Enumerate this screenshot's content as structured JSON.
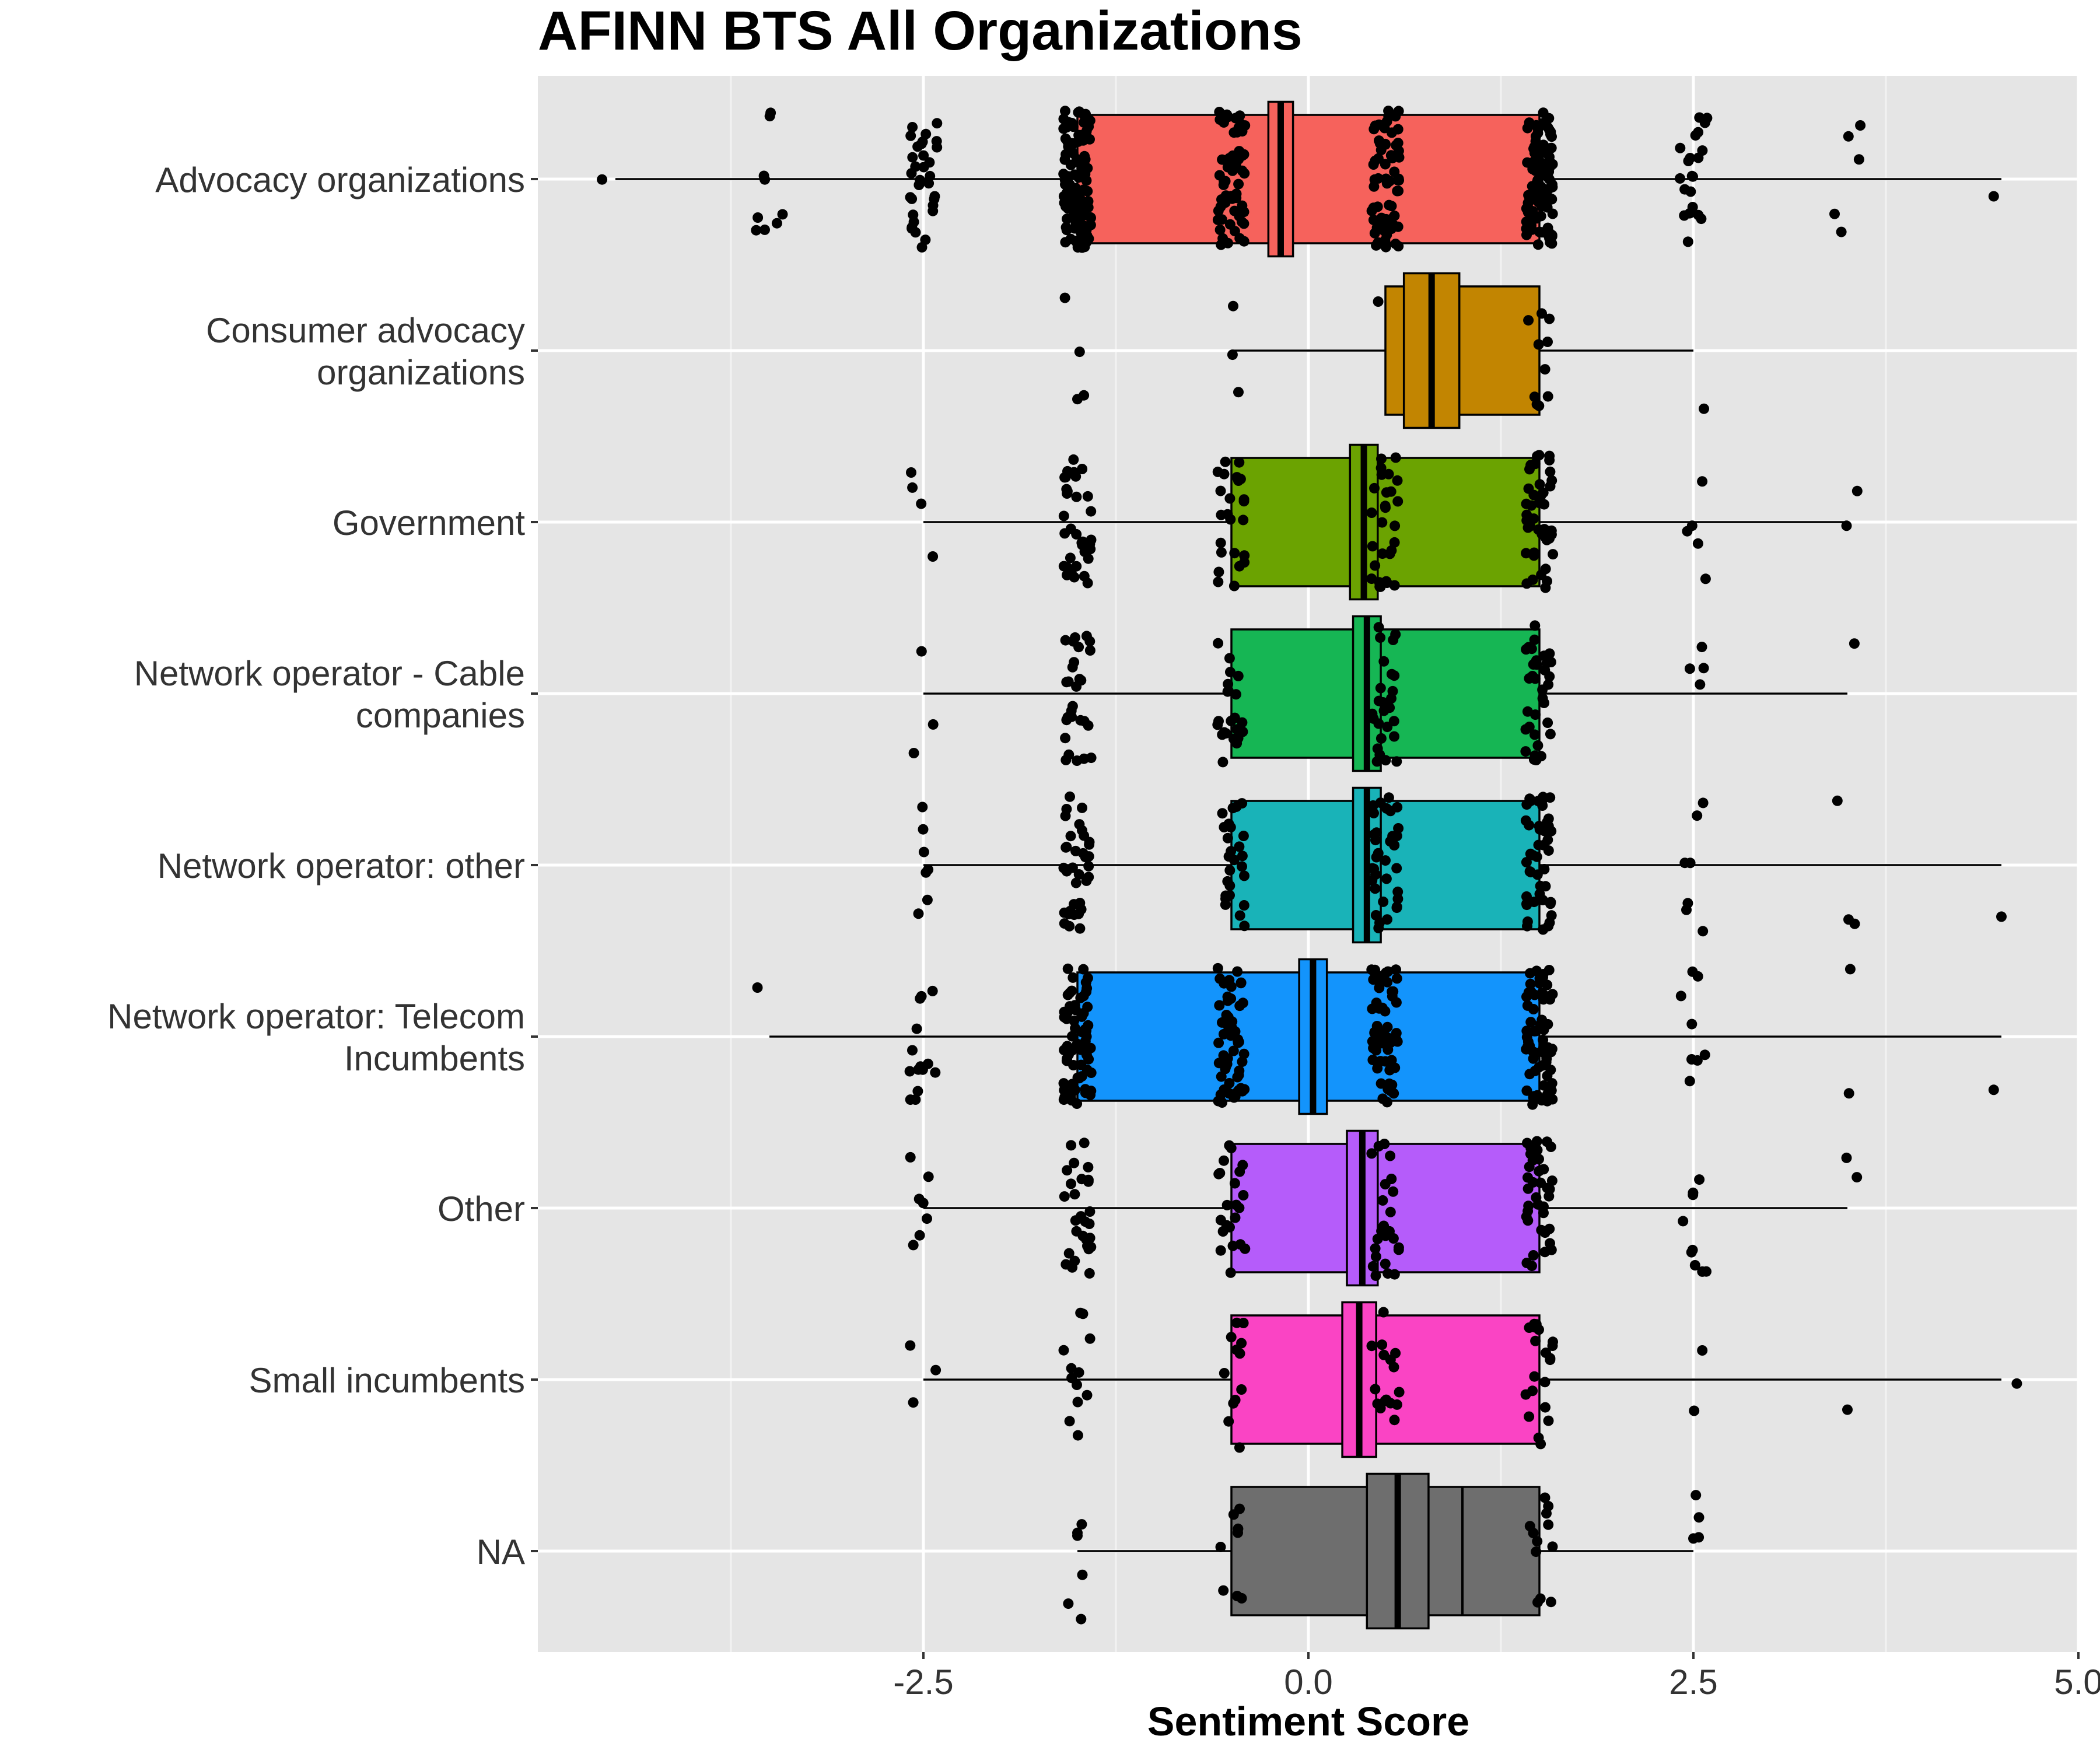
{
  "chart_data": {
    "type": "boxplot",
    "title": "AFINN BTS All Organizations",
    "xlabel": "Sentiment Score",
    "ylabel": "",
    "xlim": [
      -5,
      5
    ],
    "x_ticks": [
      {
        "value": -2.5,
        "label": "-2.5"
      },
      {
        "value": 0,
        "label": "0.0"
      },
      {
        "value": 2.5,
        "label": "2.5"
      },
      {
        "value": 5,
        "label": "5.0"
      }
    ],
    "grid": true,
    "notched": true,
    "jitter_points": true,
    "legend": "none",
    "categories": [
      {
        "lines": [
          "NA"
        ],
        "color": "#6e6e6e",
        "q1": -0.5,
        "median": 0.58,
        "q3": 1.5,
        "notch": [
          0.38,
          0.78
        ],
        "whisker": [
          -1.5,
          2.5
        ],
        "extra_line": 1.0,
        "groups": [
          {
            "v": -1.5,
            "n": 4
          },
          {
            "v": -0.5,
            "n": 8
          },
          {
            "v": 1.5,
            "n": 12
          },
          {
            "v": 2.5,
            "n": 3
          }
        ],
        "outliers": [
          -1.5,
          -1.5,
          2.5
        ]
      },
      {
        "lines": [
          "Small incumbents"
        ],
        "color": "#fa44c4",
        "q1": -0.5,
        "median": 0.33,
        "q3": 1.5,
        "notch": [
          0.22,
          0.44
        ],
        "whisker": [
          -2.5,
          4.5
        ],
        "groups": [
          {
            "v": -2.5,
            "n": 3
          },
          {
            "v": -1.5,
            "n": 12
          },
          {
            "v": -0.5,
            "n": 12
          },
          {
            "v": 0.5,
            "n": 16
          },
          {
            "v": 1.5,
            "n": 20
          },
          {
            "v": 2.5,
            "n": 2
          }
        ],
        "outliers": [
          4.6,
          3.5
        ]
      },
      {
        "lines": [
          "Other"
        ],
        "color": "#b55cfa",
        "q1": -0.5,
        "median": 0.35,
        "q3": 1.5,
        "notch": [
          0.25,
          0.45
        ],
        "whisker": [
          -2.5,
          3.5
        ],
        "groups": [
          {
            "v": -2.5,
            "n": 7
          },
          {
            "v": -1.5,
            "n": 28
          },
          {
            "v": -0.5,
            "n": 22
          },
          {
            "v": 0.5,
            "n": 24
          },
          {
            "v": 1.5,
            "n": 38
          },
          {
            "v": 2.5,
            "n": 9
          },
          {
            "v": 3.5,
            "n": 2
          }
        ],
        "outliers": []
      },
      {
        "lines": [
          "Network operator: Telecom",
          "Incumbents"
        ],
        "color": "#1394fc",
        "q1": -1.5,
        "median": 0.03,
        "q3": 1.5,
        "notch": [
          -0.06,
          0.12
        ],
        "whisker": [
          -3.5,
          4.5
        ],
        "groups": [
          {
            "v": -3.5,
            "n": 1
          },
          {
            "v": -2.5,
            "n": 14
          },
          {
            "v": -1.5,
            "n": 65
          },
          {
            "v": -0.5,
            "n": 55
          },
          {
            "v": 0.5,
            "n": 55
          },
          {
            "v": 1.5,
            "n": 65
          },
          {
            "v": 2.5,
            "n": 8
          },
          {
            "v": 3.5,
            "n": 2
          }
        ],
        "outliers": [
          4.45
        ]
      },
      {
        "lines": [
          "Network operator: other"
        ],
        "color": "#19b3b8",
        "q1": -0.5,
        "median": 0.38,
        "q3": 1.5,
        "notch": [
          0.29,
          0.47
        ],
        "whisker": [
          -2.5,
          4.5
        ],
        "groups": [
          {
            "v": -2.5,
            "n": 7
          },
          {
            "v": -1.5,
            "n": 35
          },
          {
            "v": -0.5,
            "n": 26
          },
          {
            "v": 0.5,
            "n": 34
          },
          {
            "v": 1.5,
            "n": 46
          },
          {
            "v": 2.5,
            "n": 7
          },
          {
            "v": 3.5,
            "n": 3
          }
        ],
        "outliers": [
          4.5
        ]
      },
      {
        "lines": [
          "Network operator - Cable",
          "companies"
        ],
        "color": "#16b654",
        "q1": -0.5,
        "median": 0.38,
        "q3": 1.5,
        "notch": [
          0.29,
          0.47
        ],
        "whisker": [
          -2.5,
          3.5
        ],
        "groups": [
          {
            "v": -2.5,
            "n": 3
          },
          {
            "v": -1.5,
            "n": 28
          },
          {
            "v": -0.5,
            "n": 24
          },
          {
            "v": 0.5,
            "n": 26
          },
          {
            "v": 1.5,
            "n": 34
          },
          {
            "v": 2.5,
            "n": 4
          },
          {
            "v": 3.5,
            "n": 1
          }
        ],
        "outliers": []
      },
      {
        "lines": [
          "Government"
        ],
        "color": "#6ba301",
        "q1": -0.5,
        "median": 0.36,
        "q3": 1.5,
        "notch": [
          0.27,
          0.45
        ],
        "whisker": [
          -2.5,
          3.5
        ],
        "groups": [
          {
            "v": -2.5,
            "n": 4
          },
          {
            "v": -1.5,
            "n": 34
          },
          {
            "v": -0.5,
            "n": 24
          },
          {
            "v": 0.5,
            "n": 28
          },
          {
            "v": 1.5,
            "n": 46
          },
          {
            "v": 2.5,
            "n": 5
          },
          {
            "v": 3.5,
            "n": 2
          }
        ],
        "outliers": []
      },
      {
        "lines": [
          "Consumer advocacy",
          "organizations"
        ],
        "color": "#c28501",
        "q1": 0.5,
        "median": 0.8,
        "q3": 1.5,
        "notch": [
          0.62,
          0.98
        ],
        "whisker": [
          -0.5,
          2.5
        ],
        "groups": [
          {
            "v": -1.5,
            "n": 3
          },
          {
            "v": -0.5,
            "n": 3
          },
          {
            "v": 0.5,
            "n": 1
          },
          {
            "v": 1.5,
            "n": 10
          },
          {
            "v": 2.5,
            "n": 1
          }
        ],
        "outliers": [
          -1.5
        ]
      },
      {
        "lines": [
          "Advocacy organizations"
        ],
        "color": "#f6625c",
        "q1": -1.5,
        "median": -0.18,
        "q3": 1.5,
        "notch": [
          -0.26,
          -0.1
        ],
        "whisker": [
          -4.5,
          4.5
        ],
        "groups": [
          {
            "v": -4.5,
            "n": 1
          },
          {
            "v": -3.5,
            "n": 9
          },
          {
            "v": -2.5,
            "n": 32
          },
          {
            "v": -1.5,
            "n": 120
          },
          {
            "v": -0.5,
            "n": 60
          },
          {
            "v": 0.5,
            "n": 72
          },
          {
            "v": 1.5,
            "n": 95
          },
          {
            "v": 2.5,
            "n": 22
          },
          {
            "v": 3.5,
            "n": 5
          }
        ],
        "outliers": [
          4.45
        ]
      }
    ]
  }
}
